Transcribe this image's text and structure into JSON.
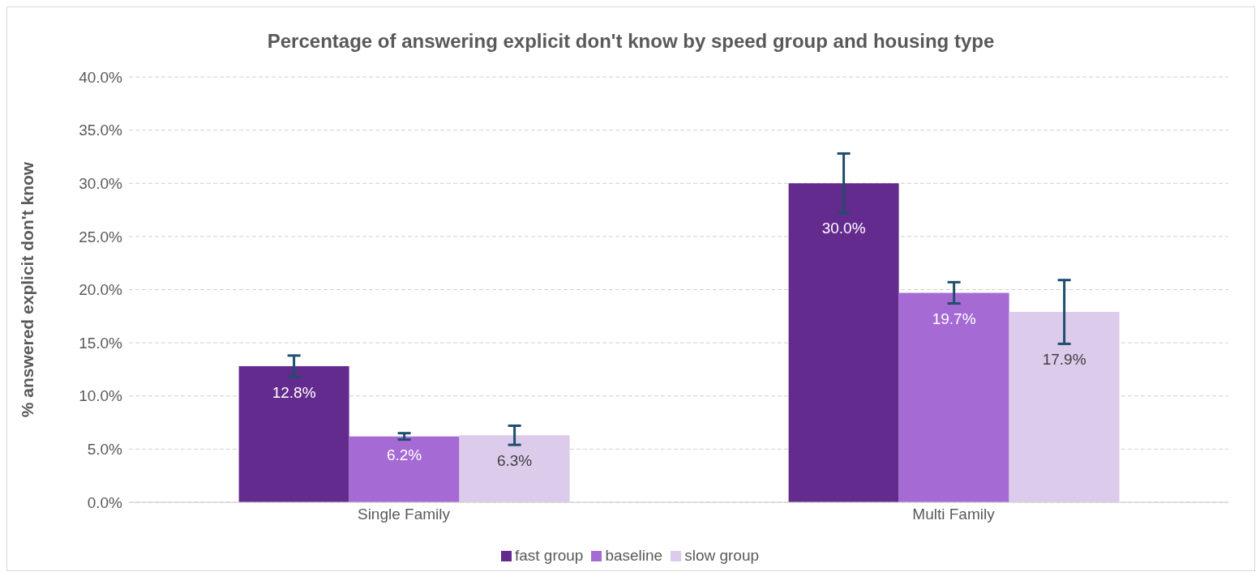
{
  "chart_data": {
    "type": "bar",
    "title": "Percentage of answering explicit don't know by speed group and housing type",
    "ylabel": "% answered explicit don't know",
    "categories": [
      "Single Family",
      "Multi Family"
    ],
    "series": [
      {
        "name": "fast group",
        "color": "#642b8f",
        "values": [
          12.8,
          30.0
        ],
        "errors": [
          1.0,
          2.8
        ],
        "value_labels": [
          "12.8%",
          "30.0%"
        ]
      },
      {
        "name": "baseline",
        "color": "#a56ad4",
        "values": [
          6.2,
          19.7
        ],
        "errors": [
          0.3,
          1.0
        ],
        "value_labels": [
          "6.2%",
          "19.7%"
        ]
      },
      {
        "name": "slow group",
        "color": "#dccbeb",
        "values": [
          6.3,
          17.9
        ],
        "errors": [
          0.9,
          3.0
        ],
        "value_labels": [
          "6.3%",
          "17.9%"
        ]
      }
    ],
    "ylim": [
      0,
      40
    ],
    "yticks": [
      {
        "value": 0,
        "label": "0.0%"
      },
      {
        "value": 5,
        "label": "5.0%"
      },
      {
        "value": 10,
        "label": "10.0%"
      },
      {
        "value": 15,
        "label": "15.0%"
      },
      {
        "value": 20,
        "label": "20.0%"
      },
      {
        "value": 25,
        "label": "25.0%"
      },
      {
        "value": 30,
        "label": "30.0%"
      },
      {
        "value": 35,
        "label": "35.0%"
      },
      {
        "value": 40,
        "label": "40.0%"
      }
    ],
    "grid": "y",
    "legend": "bottom"
  }
}
